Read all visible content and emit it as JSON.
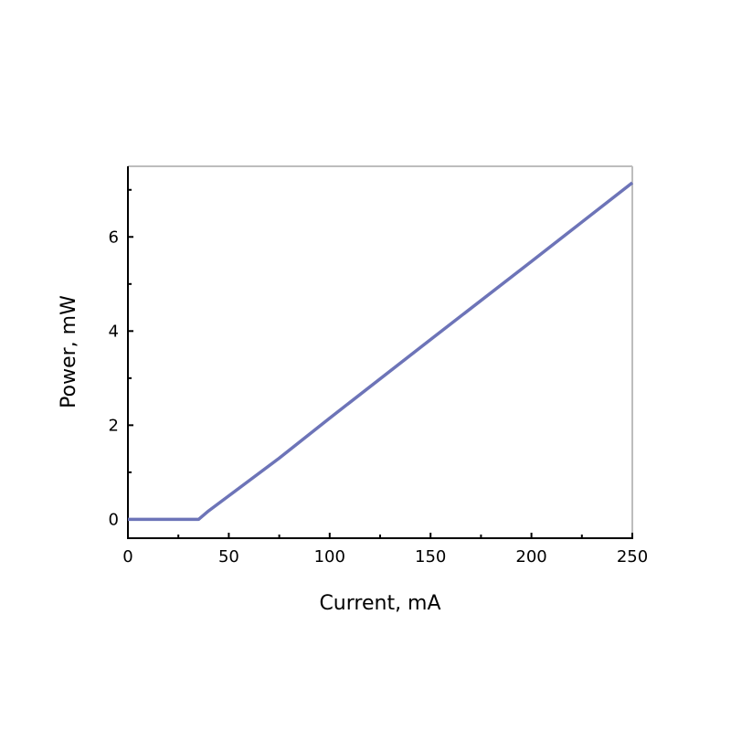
{
  "chart_data": {
    "type": "line",
    "title": "",
    "xlabel": "Current, mA",
    "ylabel": "Power, mW",
    "xlim": [
      0,
      250
    ],
    "ylim": [
      -0.4,
      7.5
    ],
    "xticks": [
      0,
      50,
      100,
      150,
      200,
      250
    ],
    "xtick_labels": [
      "0",
      "50",
      "100",
      "150",
      "200",
      "250"
    ],
    "xminor": [
      25,
      75,
      125,
      175,
      225
    ],
    "yticks": [
      0,
      2,
      4,
      6
    ],
    "ytick_labels": [
      "0",
      "2",
      "4",
      "6"
    ],
    "yminor": [
      1,
      3,
      5,
      7
    ],
    "grid": false,
    "series": [
      {
        "color": "#6d74b8",
        "x": [
          0,
          35,
          40,
          50,
          60,
          75,
          100,
          150,
          200,
          250
        ],
        "y": [
          0,
          0,
          0.18,
          0.5,
          0.82,
          1.3,
          2.15,
          3.82,
          5.48,
          7.15
        ]
      }
    ]
  }
}
